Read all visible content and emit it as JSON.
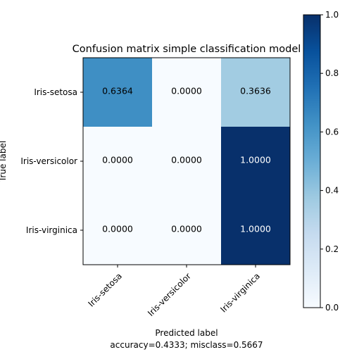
{
  "chart_data": {
    "type": "heatmap",
    "title": "Confusion matrix simple classification model",
    "xlabel": "Predicted label",
    "ylabel": "True label",
    "footer": "accuracy=0.4333; misclass=0.5667",
    "row_labels": [
      "Iris-setosa",
      "Iris-versicolor",
      "Iris-virginica"
    ],
    "col_labels": [
      "Iris-setosa",
      "Iris-versicolor",
      "Iris-virginica"
    ],
    "values": [
      [
        0.6364,
        0.0,
        0.3636
      ],
      [
        0.0,
        0.0,
        1.0
      ],
      [
        0.0,
        0.0,
        1.0
      ]
    ],
    "value_format": "0.0000",
    "colormap": "Blues",
    "vmin": 0.0,
    "vmax": 1.0,
    "colorbar_ticks": [
      "0.0",
      "0.2",
      "0.4",
      "0.6",
      "0.8",
      "1.0"
    ],
    "colors": {
      "low": "#f7fbff",
      "high": "#08306b",
      "text_light": "#ffffff",
      "text_dark": "#000000"
    }
  }
}
